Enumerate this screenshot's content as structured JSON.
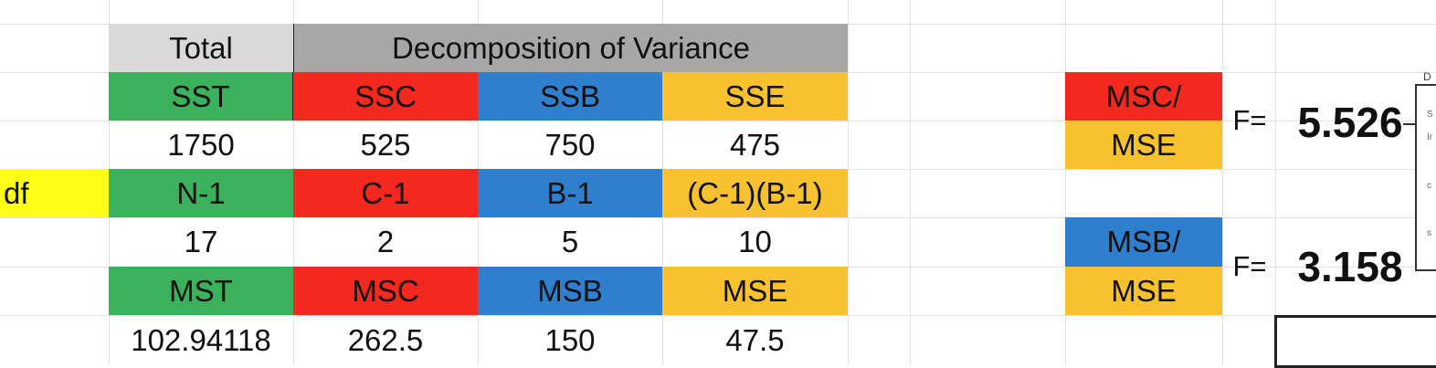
{
  "colors": {
    "green": "#3cb15b",
    "red": "#f3281e",
    "blue": "#2e7fcd",
    "gold": "#f8c22e",
    "yellow": "#ffff1a",
    "header_light": "#d9d9d9",
    "header_dark": "#a7a7a7"
  },
  "header": {
    "total": "Total",
    "decomposition": "Decomposition of Variance"
  },
  "rows": {
    "sums": [
      "SST",
      "SSC",
      "SSB",
      "SSE"
    ],
    "sum_values": [
      "1750",
      "525",
      "750",
      "475"
    ],
    "df_label": "df",
    "df": [
      "N-1",
      "C-1",
      "B-1",
      "(C-1)(B-1)"
    ],
    "df_values": [
      "17",
      "2",
      "5",
      "10"
    ],
    "means": [
      "MST",
      "MSC",
      "MSB",
      "MSE"
    ],
    "mean_values": [
      "102.94118",
      "262.5",
      "150",
      "47.5"
    ]
  },
  "ratios": {
    "c_numer": "MSC/",
    "c_denom": "MSE",
    "c_f_label": "F=",
    "c_f_value": "5.526",
    "b_numer": "MSB/",
    "b_denom": "MSE",
    "b_f_label": "F=",
    "b_f_value": "3.158"
  },
  "side_panel": {
    "top_letter": "D",
    "marks": [
      "S",
      "Ir",
      "c",
      "s"
    ]
  }
}
